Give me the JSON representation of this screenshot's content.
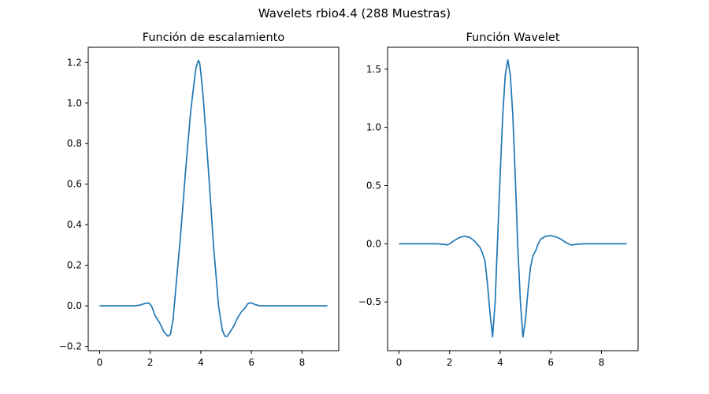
{
  "figure": {
    "suptitle": "Wavelets rbio4.4 (288 Muestras)"
  },
  "chart_data": [
    {
      "type": "line",
      "title": "Función de escalamiento",
      "xlabel": "",
      "ylabel": "",
      "xlim": [
        -0.45,
        9.45
      ],
      "ylim": [
        -0.221,
        1.275
      ],
      "xticks": [
        0,
        2,
        4,
        6,
        8
      ],
      "xtick_labels": [
        "0",
        "2",
        "4",
        "6",
        "8"
      ],
      "yticks": [
        -0.2,
        0.0,
        0.2,
        0.4,
        0.6,
        0.8,
        1.0,
        1.2
      ],
      "ytick_labels": [
        "−0.2",
        "0.0",
        "0.2",
        "0.4",
        "0.6",
        "0.8",
        "1.0",
        "1.2"
      ],
      "color": "#1f77b4",
      "series": [
        {
          "x": [
            0,
            1.0,
            1.4,
            1.6,
            1.8,
            1.95,
            2.05,
            2.2,
            2.4,
            2.55,
            2.7,
            2.8,
            2.9,
            3.0,
            3.2,
            3.4,
            3.6,
            3.8,
            3.9,
            3.95,
            4.0,
            4.1,
            4.3,
            4.5,
            4.7,
            4.85,
            4.95,
            5.05,
            5.15,
            5.3,
            5.45,
            5.6,
            5.75,
            5.85,
            5.95,
            6.05,
            6.15,
            6.3,
            6.5,
            7.0,
            8.0,
            9.0
          ],
          "y": [
            0,
            0,
            0,
            0.004,
            0.012,
            0.014,
            0.0,
            -0.05,
            -0.09,
            -0.13,
            -0.15,
            -0.14,
            -0.07,
            0.07,
            0.35,
            0.67,
            0.96,
            1.17,
            1.21,
            1.2,
            1.15,
            1.02,
            0.67,
            0.3,
            0.0,
            -0.12,
            -0.15,
            -0.15,
            -0.13,
            -0.1,
            -0.06,
            -0.03,
            -0.01,
            0.01,
            0.015,
            0.012,
            0.006,
            0.001,
            0,
            0,
            0,
            0
          ]
        }
      ]
    },
    {
      "type": "line",
      "title": "Función Wavelet",
      "xlabel": "",
      "ylabel": "",
      "xlim": [
        -0.45,
        9.45
      ],
      "ylim": [
        -0.918,
        1.688
      ],
      "xticks": [
        0,
        2,
        4,
        6,
        8
      ],
      "xtick_labels": [
        "0",
        "2",
        "4",
        "6",
        "8"
      ],
      "yticks": [
        -0.5,
        0.0,
        0.5,
        1.0,
        1.5
      ],
      "ytick_labels": [
        "−0.5",
        "0.0",
        "0.5",
        "1.0",
        "1.5"
      ],
      "color": "#1f77b4",
      "series": [
        {
          "x": [
            0,
            1.0,
            1.5,
            1.8,
            1.9,
            2.0,
            2.2,
            2.4,
            2.6,
            2.8,
            3.0,
            3.2,
            3.3,
            3.4,
            3.5,
            3.6,
            3.7,
            3.8,
            3.9,
            4.0,
            4.1,
            4.2,
            4.3,
            4.4,
            4.5,
            4.6,
            4.7,
            4.8,
            4.9,
            5.0,
            5.1,
            5.2,
            5.3,
            5.4,
            5.5,
            5.6,
            5.8,
            6.0,
            6.2,
            6.4,
            6.6,
            6.8,
            7.0,
            7.3,
            8.0,
            9.0
          ],
          "y": [
            0,
            0,
            0,
            -0.005,
            -0.01,
            0.0,
            0.03,
            0.055,
            0.065,
            0.055,
            0.02,
            -0.03,
            -0.08,
            -0.15,
            -0.35,
            -0.6,
            -0.8,
            -0.5,
            0.05,
            0.6,
            1.1,
            1.45,
            1.58,
            1.45,
            1.1,
            0.55,
            -0.05,
            -0.5,
            -0.8,
            -0.65,
            -0.4,
            -0.2,
            -0.1,
            -0.06,
            0.0,
            0.04,
            0.065,
            0.07,
            0.06,
            0.04,
            0.01,
            -0.01,
            -0.005,
            0,
            0,
            0
          ]
        }
      ]
    }
  ]
}
